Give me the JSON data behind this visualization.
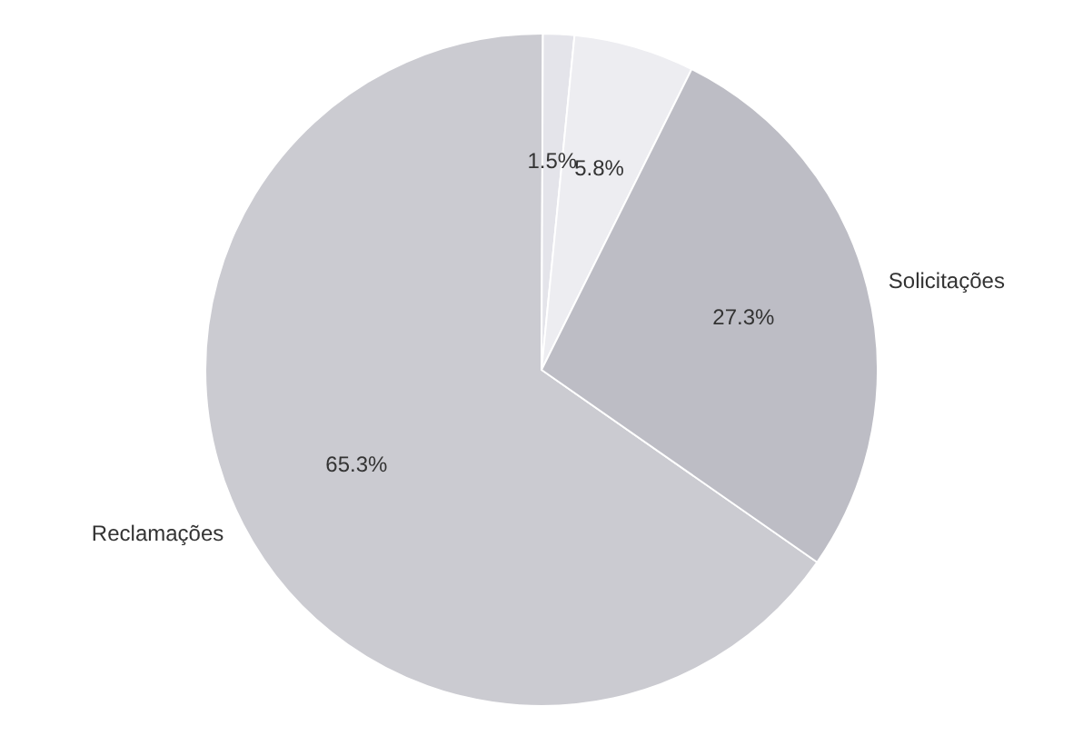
{
  "chart_data": {
    "type": "pie",
    "categories": [
      "Reclamações",
      null,
      null,
      "Solicitações"
    ],
    "values": [
      65.3,
      1.5,
      5.8,
      27.3
    ],
    "value_labels": [
      "65.3%",
      "1.5%",
      "5.8%",
      "27.3%"
    ],
    "colors": [
      "#cbcbd1",
      "#e4e4ea",
      "#ededf1",
      "#bdbdc5"
    ],
    "legend": false
  }
}
